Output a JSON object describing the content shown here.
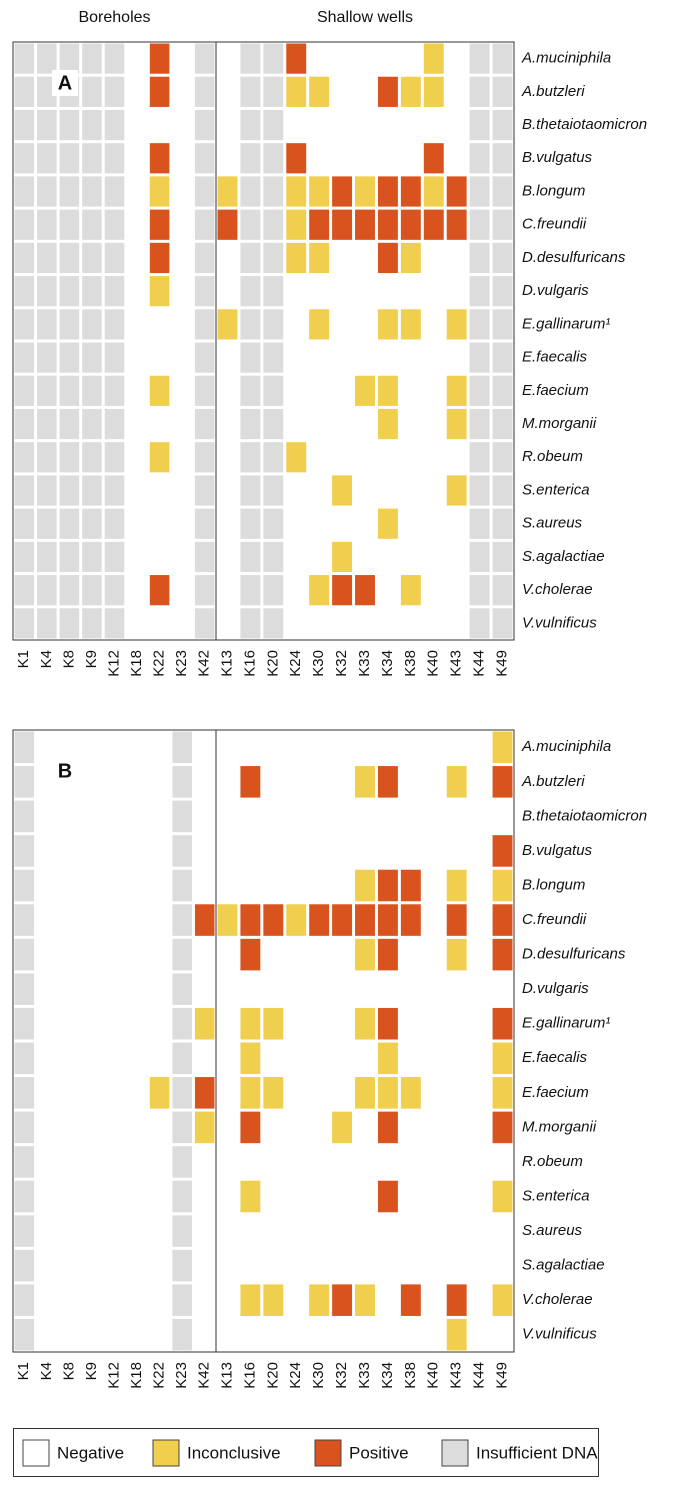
{
  "chart_data": [
    {
      "type": "heatmap",
      "panel_label": "A",
      "row_labels": [
        "A.muciniphila",
        "A.butzleri",
        "B.thetaiotaomicron",
        "B.vulgatus",
        "B.longum",
        "C.freundii",
        "D.desulfuricans",
        "D.vulgaris",
        "E.gallinarum¹",
        "E.faecalis",
        "E.faecium",
        "M.morganii",
        "R.obeum",
        "S.enterica",
        "S.aureus",
        "S.agalactiae",
        "V.cholerae",
        "V.vulnificus"
      ],
      "row_label_colors": [
        "#111111",
        "#111111",
        "#999999",
        "#111111",
        "#111111",
        "#111111",
        "#111111",
        "#999999",
        "#111111",
        "#999999",
        "#111111",
        "#111111",
        "#999999",
        "#999999",
        "#999999",
        "#999999",
        "#111111",
        "#999999"
      ],
      "groups": [
        {
          "name": "Boreholes",
          "columns": [
            "K1",
            "K4",
            "K8",
            "K9",
            "K12",
            "K18",
            "K22",
            "K23",
            "K42"
          ],
          "values": [
            [
              3,
              3,
              3,
              3,
              3,
              0,
              2,
              0,
              3
            ],
            [
              3,
              3,
              3,
              3,
              3,
              0,
              2,
              0,
              3
            ],
            [
              3,
              3,
              3,
              3,
              3,
              0,
              0,
              0,
              3
            ],
            [
              3,
              3,
              3,
              3,
              3,
              0,
              2,
              0,
              3
            ],
            [
              3,
              3,
              3,
              3,
              3,
              0,
              1,
              0,
              3
            ],
            [
              3,
              3,
              3,
              3,
              3,
              0,
              2,
              0,
              3
            ],
            [
              3,
              3,
              3,
              3,
              3,
              0,
              2,
              0,
              3
            ],
            [
              3,
              3,
              3,
              3,
              3,
              0,
              1,
              0,
              3
            ],
            [
              3,
              3,
              3,
              3,
              3,
              0,
              0,
              0,
              3
            ],
            [
              3,
              3,
              3,
              3,
              3,
              0,
              0,
              0,
              3
            ],
            [
              3,
              3,
              3,
              3,
              3,
              0,
              1,
              0,
              3
            ],
            [
              3,
              3,
              3,
              3,
              3,
              0,
              0,
              0,
              3
            ],
            [
              3,
              3,
              3,
              3,
              3,
              0,
              1,
              0,
              3
            ],
            [
              3,
              3,
              3,
              3,
              3,
              0,
              0,
              0,
              3
            ],
            [
              3,
              3,
              3,
              3,
              3,
              0,
              0,
              0,
              3
            ],
            [
              3,
              3,
              3,
              3,
              3,
              0,
              0,
              0,
              3
            ],
            [
              3,
              3,
              3,
              3,
              3,
              0,
              2,
              0,
              3
            ],
            [
              3,
              3,
              3,
              3,
              3,
              0,
              0,
              0,
              3
            ]
          ]
        },
        {
          "name": "Shallow wells",
          "columns": [
            "K13",
            "K16",
            "K20",
            "K24",
            "K30",
            "K32",
            "K33",
            "K34",
            "K38",
            "K40",
            "K43",
            "K44",
            "K49"
          ],
          "values": [
            [
              0,
              3,
              3,
              2,
              0,
              0,
              0,
              0,
              0,
              1,
              0,
              3,
              3
            ],
            [
              0,
              3,
              3,
              1,
              1,
              0,
              0,
              2,
              1,
              1,
              0,
              3,
              3
            ],
            [
              0,
              3,
              3,
              0,
              0,
              0,
              0,
              0,
              0,
              0,
              0,
              3,
              3
            ],
            [
              0,
              3,
              3,
              2,
              0,
              0,
              0,
              0,
              0,
              2,
              0,
              3,
              3
            ],
            [
              1,
              3,
              3,
              1,
              1,
              2,
              1,
              2,
              2,
              1,
              2,
              3,
              3
            ],
            [
              2,
              3,
              3,
              1,
              2,
              2,
              2,
              2,
              2,
              2,
              2,
              3,
              3
            ],
            [
              0,
              3,
              3,
              1,
              1,
              0,
              0,
              2,
              1,
              0,
              0,
              3,
              3
            ],
            [
              0,
              3,
              3,
              0,
              0,
              0,
              0,
              0,
              0,
              0,
              0,
              3,
              3
            ],
            [
              1,
              3,
              3,
              0,
              1,
              0,
              0,
              1,
              1,
              0,
              1,
              3,
              3
            ],
            [
              0,
              3,
              3,
              0,
              0,
              0,
              0,
              0,
              0,
              0,
              0,
              3,
              3
            ],
            [
              0,
              3,
              3,
              0,
              0,
              0,
              1,
              1,
              0,
              0,
              1,
              3,
              3
            ],
            [
              0,
              3,
              3,
              0,
              0,
              0,
              0,
              1,
              0,
              0,
              1,
              3,
              3
            ],
            [
              0,
              3,
              3,
              1,
              0,
              0,
              0,
              0,
              0,
              0,
              0,
              3,
              3
            ],
            [
              0,
              3,
              3,
              0,
              0,
              1,
              0,
              0,
              0,
              0,
              1,
              3,
              3
            ],
            [
              0,
              3,
              3,
              0,
              0,
              0,
              0,
              1,
              0,
              0,
              0,
              3,
              3
            ],
            [
              0,
              3,
              3,
              0,
              0,
              1,
              0,
              0,
              0,
              0,
              0,
              3,
              3
            ],
            [
              0,
              3,
              3,
              0,
              1,
              2,
              2,
              0,
              1,
              0,
              0,
              3,
              3
            ],
            [
              0,
              3,
              3,
              0,
              0,
              0,
              0,
              0,
              0,
              0,
              0,
              3,
              3
            ]
          ]
        }
      ]
    },
    {
      "type": "heatmap",
      "panel_label": "B",
      "row_labels": [
        "A.muciniphila",
        "A.butzleri",
        "B.thetaiotaomicron",
        "B.vulgatus",
        "B.longum",
        "C.freundii",
        "D.desulfuricans",
        "D.vulgaris",
        "E.gallinarum¹",
        "E.faecalis",
        "E.faecium",
        "M.morganii",
        "R.obeum",
        "S.enterica",
        "S.aureus",
        "S.agalactiae",
        "V.cholerae",
        "V.vulnificus"
      ],
      "row_label_colors": [
        "#999999",
        "#111111",
        "#999999",
        "#999999",
        "#111111",
        "#111111",
        "#111111",
        "#999999",
        "#111111",
        "#111111",
        "#111111",
        "#111111",
        "#999999",
        "#111111",
        "#999999",
        "#999999",
        "#111111",
        "#999999"
      ],
      "groups": [
        {
          "columns": [
            "K1",
            "K4",
            "K8",
            "K9",
            "K12",
            "K18",
            "K22",
            "K23",
            "K42"
          ],
          "values": [
            [
              3,
              0,
              0,
              0,
              0,
              0,
              0,
              3,
              0
            ],
            [
              3,
              0,
              0,
              0,
              0,
              0,
              0,
              3,
              0
            ],
            [
              3,
              0,
              0,
              0,
              0,
              0,
              0,
              3,
              0
            ],
            [
              3,
              0,
              0,
              0,
              0,
              0,
              0,
              3,
              0
            ],
            [
              3,
              0,
              0,
              0,
              0,
              0,
              0,
              3,
              0
            ],
            [
              3,
              0,
              0,
              0,
              0,
              0,
              0,
              3,
              2
            ],
            [
              3,
              0,
              0,
              0,
              0,
              0,
              0,
              3,
              0
            ],
            [
              3,
              0,
              0,
              0,
              0,
              0,
              0,
              3,
              0
            ],
            [
              3,
              0,
              0,
              0,
              0,
              0,
              0,
              3,
              1
            ],
            [
              3,
              0,
              0,
              0,
              0,
              0,
              0,
              3,
              0
            ],
            [
              3,
              0,
              0,
              0,
              0,
              0,
              1,
              3,
              2
            ],
            [
              3,
              0,
              0,
              0,
              0,
              0,
              0,
              3,
              1
            ],
            [
              3,
              0,
              0,
              0,
              0,
              0,
              0,
              3,
              0
            ],
            [
              3,
              0,
              0,
              0,
              0,
              0,
              0,
              3,
              0
            ],
            [
              3,
              0,
              0,
              0,
              0,
              0,
              0,
              3,
              0
            ],
            [
              3,
              0,
              0,
              0,
              0,
              0,
              0,
              3,
              0
            ],
            [
              3,
              0,
              0,
              0,
              0,
              0,
              0,
              3,
              0
            ],
            [
              3,
              0,
              0,
              0,
              0,
              0,
              0,
              3,
              0
            ]
          ]
        },
        {
          "columns": [
            "K13",
            "K16",
            "K20",
            "K24",
            "K30",
            "K32",
            "K33",
            "K34",
            "K38",
            "K40",
            "K43",
            "K44",
            "K49"
          ],
          "values": [
            [
              0,
              0,
              0,
              0,
              0,
              0,
              0,
              0,
              0,
              0,
              0,
              0,
              1
            ],
            [
              0,
              2,
              0,
              0,
              0,
              0,
              1,
              2,
              0,
              0,
              1,
              0,
              2
            ],
            [
              0,
              0,
              0,
              0,
              0,
              0,
              0,
              0,
              0,
              0,
              0,
              0,
              0
            ],
            [
              0,
              0,
              0,
              0,
              0,
              0,
              0,
              0,
              0,
              0,
              0,
              0,
              2
            ],
            [
              0,
              0,
              0,
              0,
              0,
              0,
              1,
              2,
              2,
              0,
              1,
              0,
              1
            ],
            [
              1,
              2,
              2,
              1,
              2,
              2,
              2,
              2,
              2,
              0,
              2,
              0,
              2
            ],
            [
              0,
              2,
              0,
              0,
              0,
              0,
              1,
              2,
              0,
              0,
              1,
              0,
              2
            ],
            [
              0,
              0,
              0,
              0,
              0,
              0,
              0,
              0,
              0,
              0,
              0,
              0,
              0
            ],
            [
              0,
              1,
              1,
              0,
              0,
              0,
              1,
              2,
              0,
              0,
              0,
              0,
              2
            ],
            [
              0,
              1,
              0,
              0,
              0,
              0,
              0,
              1,
              0,
              0,
              0,
              0,
              1
            ],
            [
              0,
              1,
              1,
              0,
              0,
              0,
              1,
              1,
              1,
              0,
              0,
              0,
              1
            ],
            [
              0,
              2,
              0,
              0,
              0,
              1,
              0,
              2,
              0,
              0,
              0,
              0,
              2
            ],
            [
              0,
              0,
              0,
              0,
              0,
              0,
              0,
              0,
              0,
              0,
              0,
              0,
              0
            ],
            [
              0,
              1,
              0,
              0,
              0,
              0,
              0,
              2,
              0,
              0,
              0,
              0,
              1
            ],
            [
              0,
              0,
              0,
              0,
              0,
              0,
              0,
              0,
              0,
              0,
              0,
              0,
              0
            ],
            [
              0,
              0,
              0,
              0,
              0,
              0,
              0,
              0,
              0,
              0,
              0,
              0,
              0
            ],
            [
              0,
              1,
              1,
              0,
              1,
              2,
              1,
              0,
              2,
              0,
              2,
              0,
              1
            ],
            [
              0,
              0,
              0,
              0,
              0,
              0,
              0,
              0,
              0,
              0,
              1,
              0,
              0
            ]
          ]
        }
      ]
    }
  ],
  "legend": {
    "items": [
      {
        "label": "Negative",
        "color": "#ffffff"
      },
      {
        "label": "Inconclusive",
        "color": "#f0cf4f"
      },
      {
        "label": "Positive",
        "color": "#d9531e"
      },
      {
        "label": "Insufficient DNA",
        "color": "#dcdcdc"
      }
    ]
  }
}
